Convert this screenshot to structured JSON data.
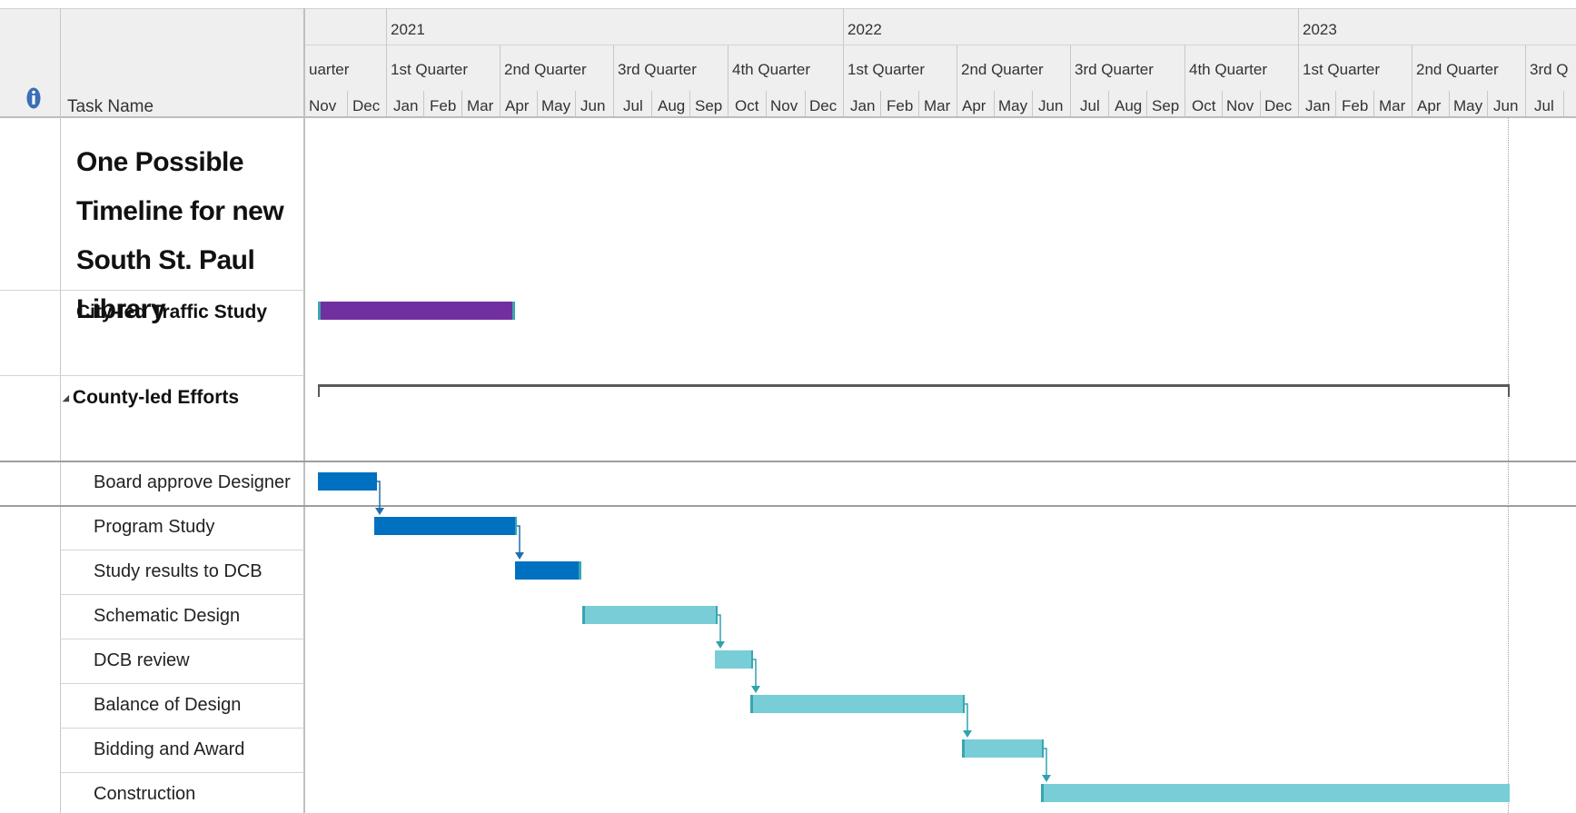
{
  "header": {
    "info_icon": "info-icon",
    "task_name_label": "Task Name",
    "years": [
      "2021",
      "2022",
      "2023"
    ],
    "quarters": [
      "uarter",
      "1st Quarter",
      "2nd Quarter",
      "3rd Quarter",
      "4th Quarter",
      "1st Quarter",
      "2nd Quarter",
      "3rd Quarter",
      "4th Quarter",
      "1st Quarter",
      "2nd Quarter",
      "3rd Q"
    ],
    "months": [
      "Nov",
      "Dec",
      "Jan",
      "Feb",
      "Mar",
      "Apr",
      "May",
      "Jun",
      "Jul",
      "Aug",
      "Sep",
      "Oct",
      "Nov",
      "Dec",
      "Jan",
      "Feb",
      "Mar",
      "Apr",
      "May",
      "Jun",
      "Jul",
      "Aug",
      "Sep",
      "Oct",
      "Nov",
      "Dec",
      "Jan",
      "Feb",
      "Mar",
      "Apr",
      "May",
      "Jun",
      "Jul"
    ]
  },
  "tasks": [
    {
      "name": "One Possible Timeline for new South St. Paul Library",
      "type": "title"
    },
    {
      "name": "City-led Traffic  Study",
      "type": "task"
    },
    {
      "name": "County-led Efforts",
      "type": "summary",
      "collapse_glyph": "◢"
    },
    {
      "name": "Board approve Designer",
      "type": "subtask"
    },
    {
      "name": "Program Study",
      "type": "subtask"
    },
    {
      "name": "Study results to DCB",
      "type": "subtask"
    },
    {
      "name": "Schematic Design",
      "type": "subtask"
    },
    {
      "name": "DCB review",
      "type": "subtask"
    },
    {
      "name": "Balance of Design",
      "type": "subtask"
    },
    {
      "name": "Bidding and Award",
      "type": "subtask"
    },
    {
      "name": "Construction",
      "type": "subtask"
    }
  ],
  "colors": {
    "purple": "#7030a0",
    "blue": "#0070c0",
    "teal": "#78cdd7",
    "teal_edge": "#3aa5b2",
    "summary": "#595959",
    "arrow": "#2fa3b0"
  }
}
